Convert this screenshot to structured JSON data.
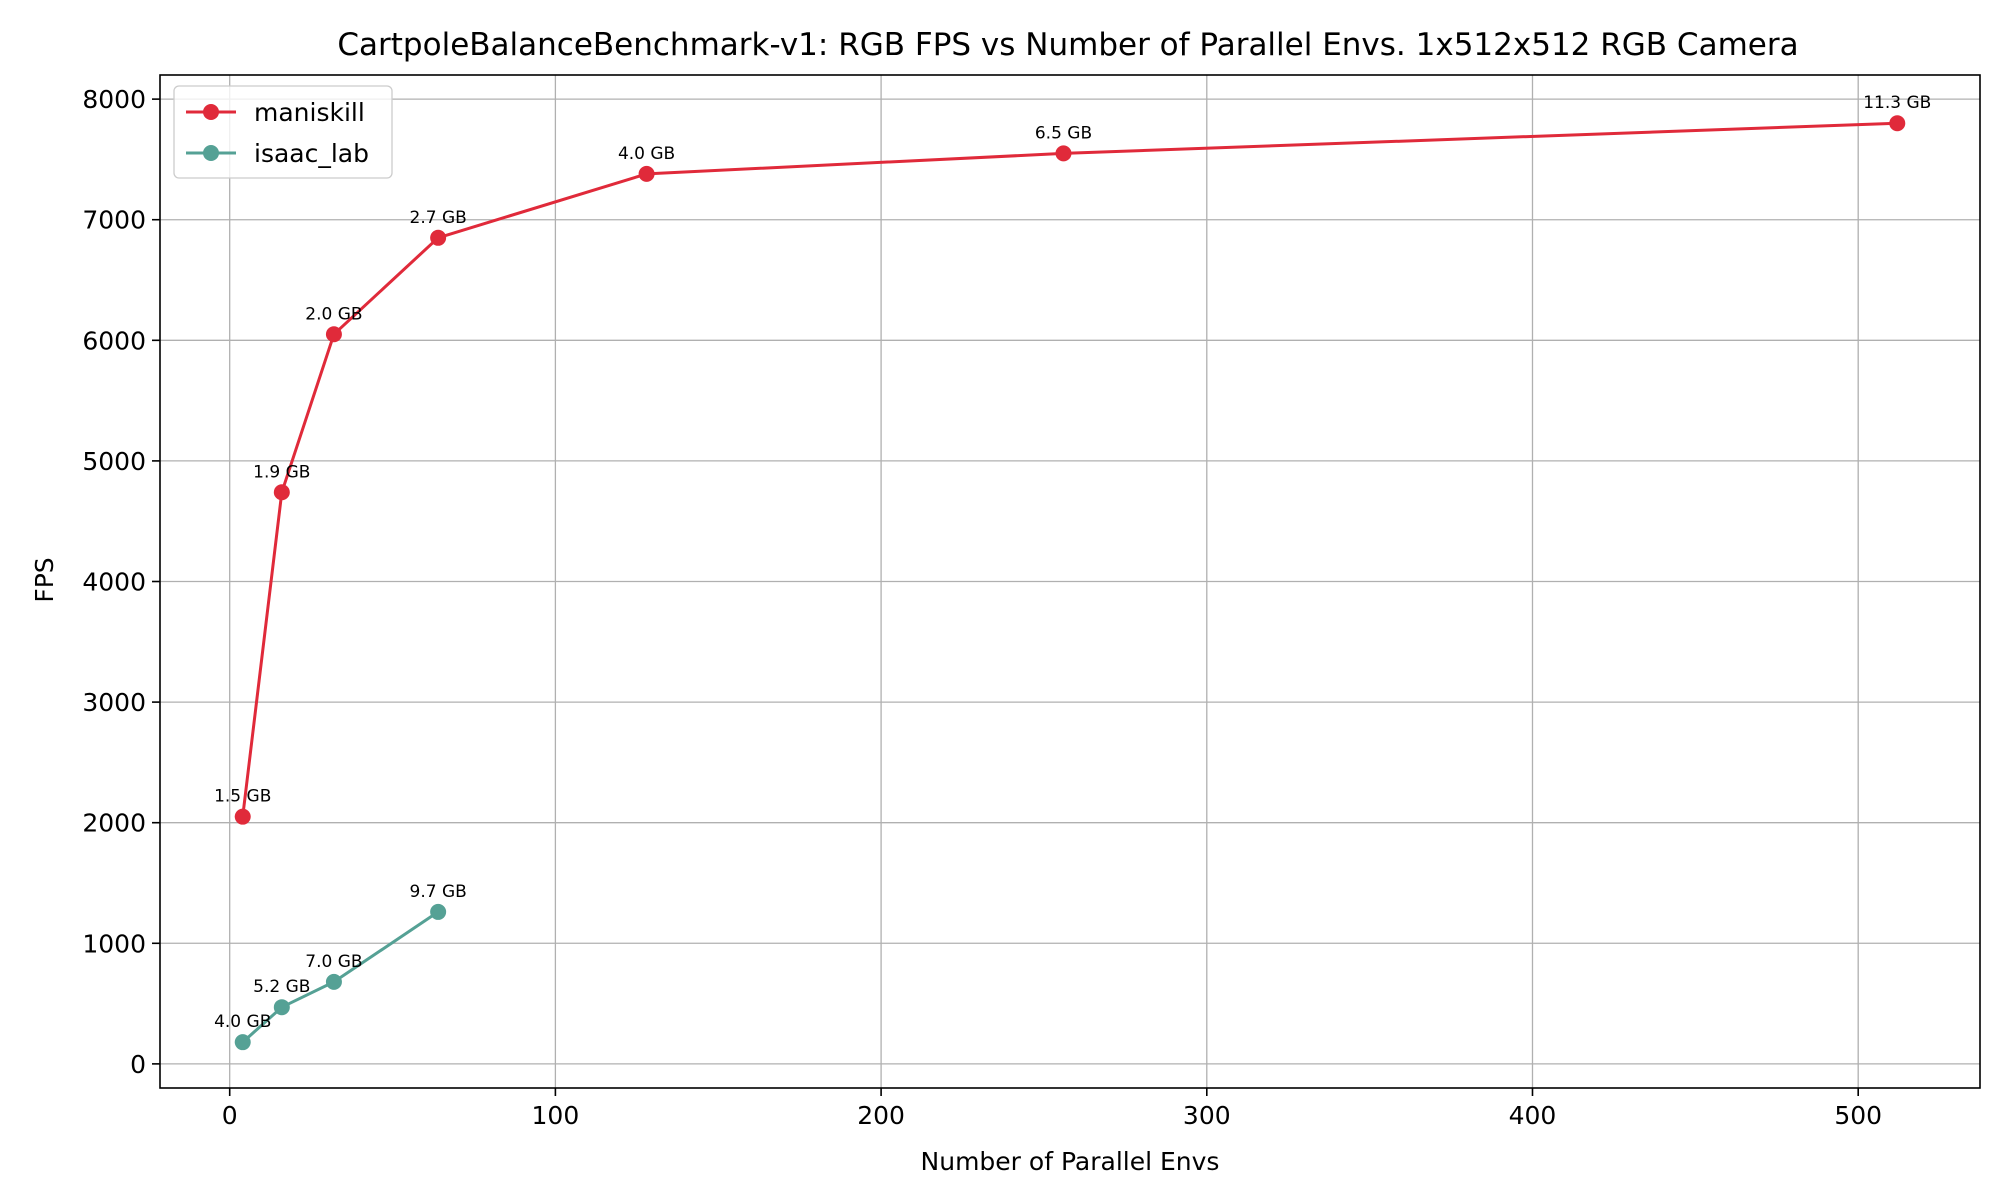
{
  "chart_data": {
    "type": "line",
    "title": "CartpoleBalanceBenchmark-v1: RGB FPS vs Number of Parallel Envs. 1x512x512 RGB Camera",
    "xlabel": "Number of Parallel Envs",
    "ylabel": "FPS",
    "xlim": [
      -21.4,
      537.4
    ],
    "ylim": [
      -200,
      8200
    ],
    "xticks": [
      0,
      100,
      200,
      300,
      400,
      500
    ],
    "yticks": [
      0,
      1000,
      2000,
      3000,
      4000,
      5000,
      6000,
      7000,
      8000
    ],
    "grid": true,
    "legend_position": "top-left",
    "series": [
      {
        "name": "maniskill",
        "color": "#e02a3a",
        "x": [
          4,
          16,
          32,
          64,
          128,
          256,
          512
        ],
        "y": [
          2050,
          4740,
          6050,
          6850,
          7380,
          7550,
          7800
        ],
        "labels": [
          "1.5 GB",
          "1.9 GB",
          "2.0 GB",
          "2.7 GB",
          "4.0 GB",
          "6.5 GB",
          "11.3 GB"
        ]
      },
      {
        "name": "isaac_lab",
        "color": "#55a195",
        "x": [
          4,
          16,
          32,
          64
        ],
        "y": [
          180,
          470,
          680,
          1260
        ],
        "labels": [
          "4.0 GB",
          "5.2 GB",
          "7.0 GB",
          "9.7 GB"
        ]
      }
    ]
  }
}
